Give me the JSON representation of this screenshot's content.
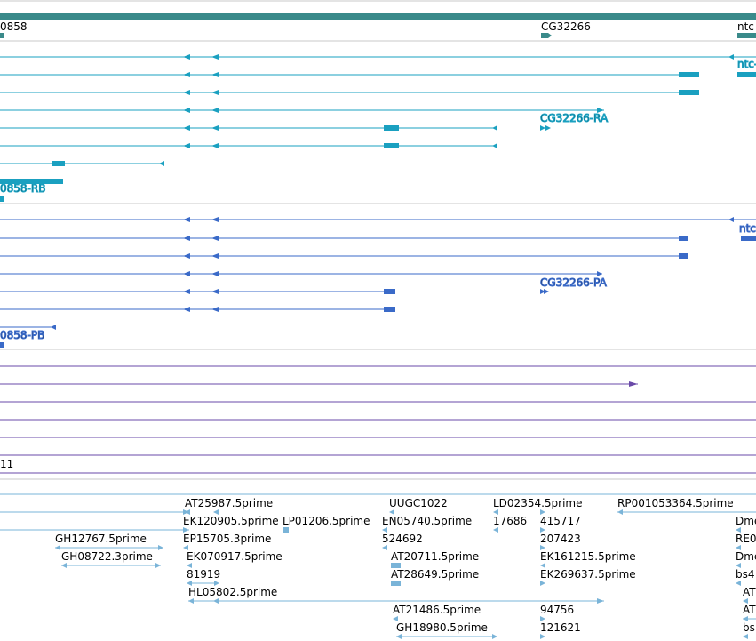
{
  "genes": {
    "left_gene": "0858",
    "mid_gene": "CG32266",
    "right_gene": "ntc"
  },
  "transcripts_rb": {
    "right_label": "ntc-",
    "mid_label": "CG32266-RA",
    "left_label": "0858-RB"
  },
  "transcripts_pb": {
    "right_label": "ntc-",
    "mid_label": "CG32266-PA",
    "left_label": "0858-PB"
  },
  "purple_track": {
    "label": "11"
  },
  "ests": {
    "labels": [
      "AT25987.5prime",
      "UUGC1022",
      "LD02354.5prime",
      "RP001053364.5prime",
      "EK120905.5prime",
      "LP01206.5prime",
      "EN05740.5prime",
      "17686",
      "415717",
      "Dme",
      "GH12767.5prime",
      "EP15705.3prime",
      "524692",
      "207423",
      "RE0",
      "GH08722.3prime",
      "EK070917.5prime",
      "AT20711.5prime",
      "EK161215.5prime",
      "Dme",
      "81919",
      "AT28649.5prime",
      "EK269637.5prime",
      "bs4",
      "HL05802.5prime",
      "AT",
      "AT21486.5prime",
      "94756",
      "AT",
      "GH18980.5prime",
      "121621",
      "bs"
    ]
  },
  "colors": {
    "gene_track": "#3a8a8a",
    "transcript_rb": "#1aa0c0",
    "transcript_pb": "#3a6ac8",
    "purple": "#6a4aa8",
    "est": "#7ab4d8",
    "divider": "#c8c8c8"
  }
}
